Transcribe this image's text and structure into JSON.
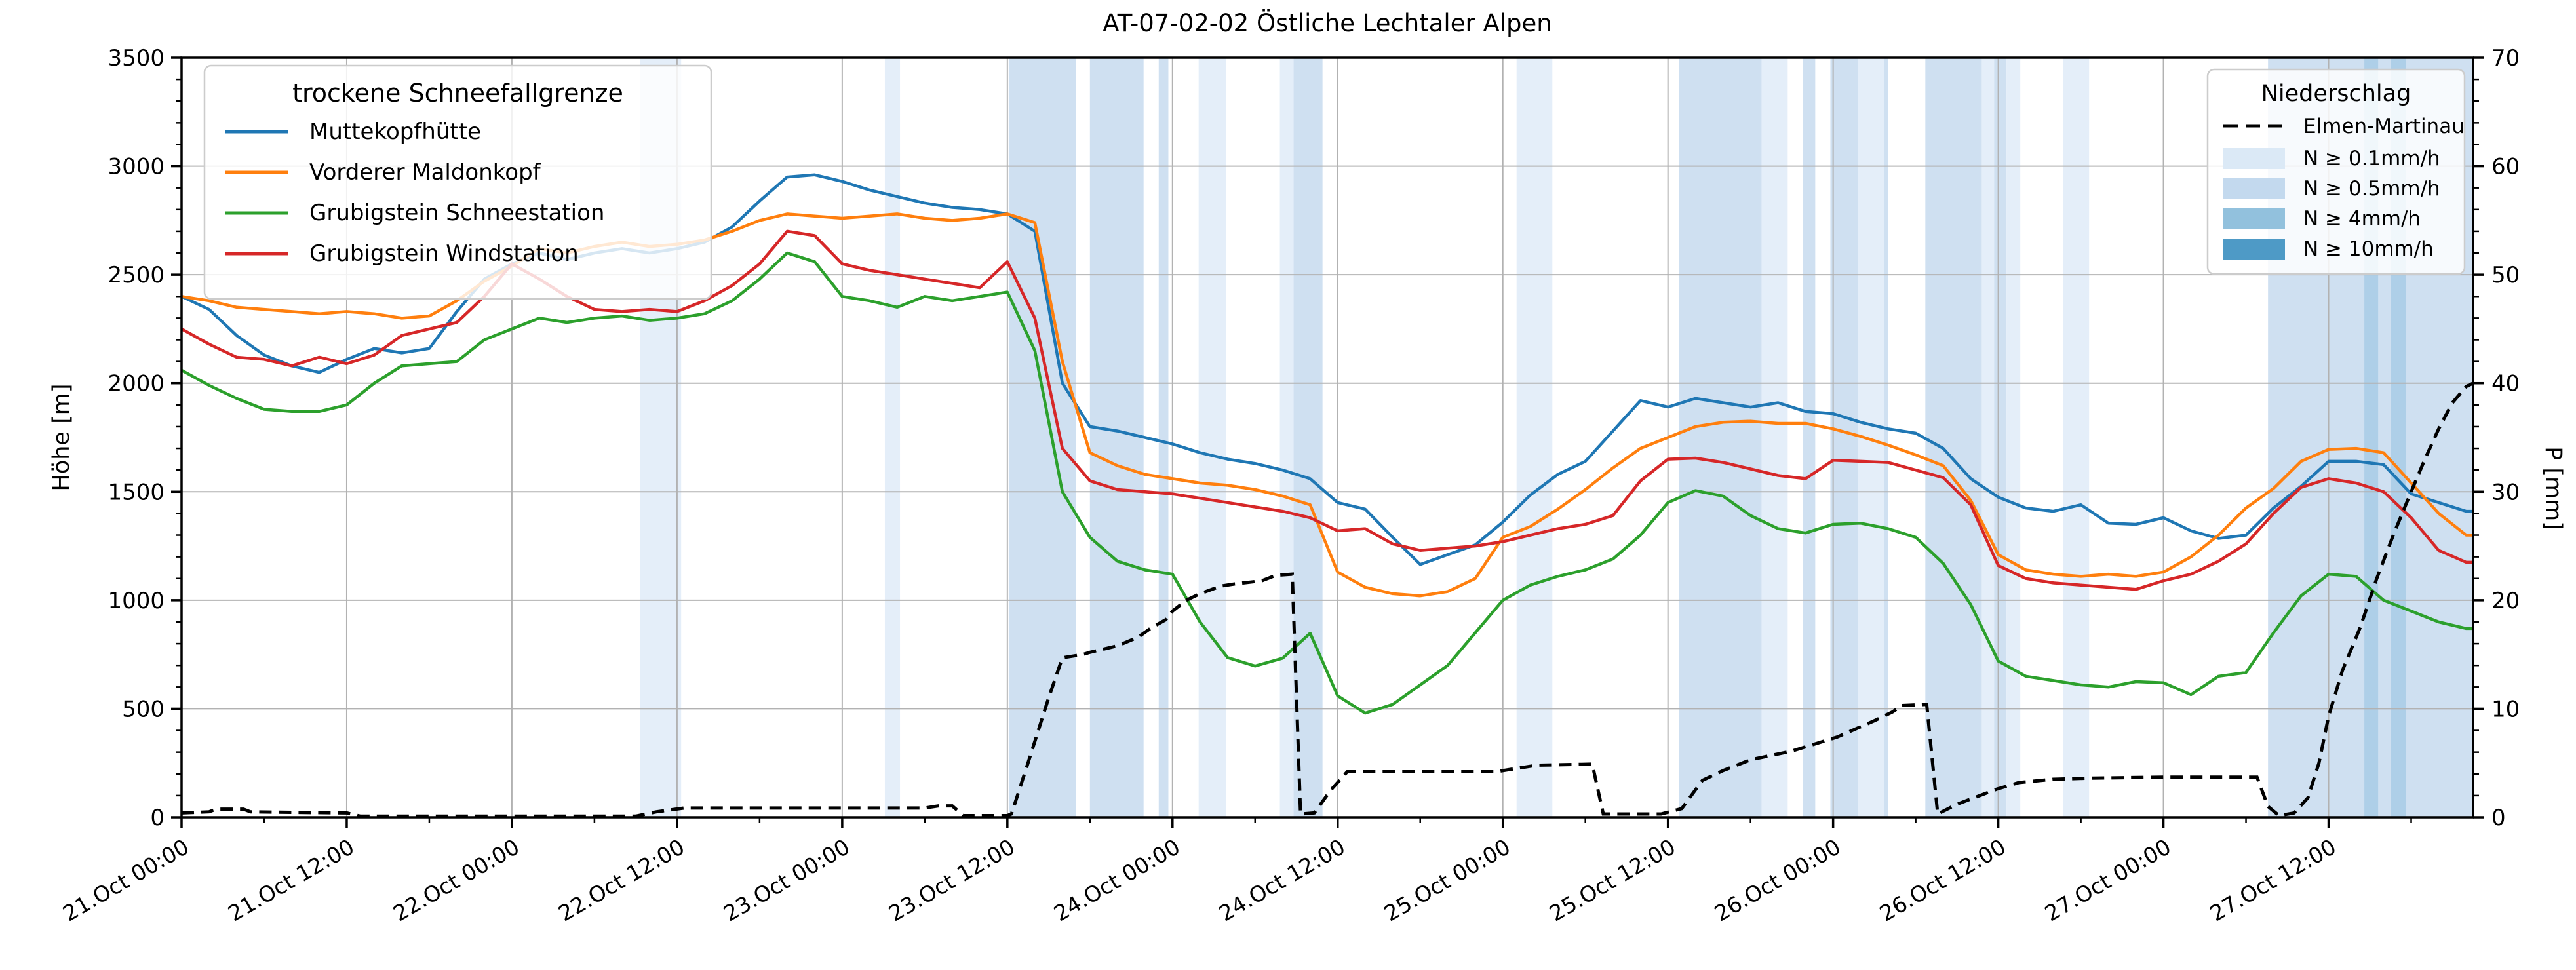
{
  "title": "AT-07-02-02 Östliche Lechtaler Alpen",
  "legend_snowline": {
    "title": "trockene Schneefallgrenze",
    "items": [
      {
        "label": "Muttekopfhütte",
        "color": "#1f77b4"
      },
      {
        "label": "Vorderer Maldonkopf",
        "color": "#ff7f0e"
      },
      {
        "label": "Grubigstein Schneestation",
        "color": "#2ca02c"
      },
      {
        "label": "Grubigstein Windstation",
        "color": "#d62728"
      }
    ]
  },
  "legend_precip": {
    "title": "Niederschlag",
    "line_item": {
      "label": "Elmen-Martinau",
      "color": "#000000"
    },
    "levels": [
      {
        "label": "N ≥ 0.1mm/h",
        "color": "#dbe9f6",
        "plot_color": "#e4eef9"
      },
      {
        "label": "N ≥ 0.5mm/h",
        "color": "#c3d9ee",
        "plot_color": "#cfe0f1"
      },
      {
        "label": "N ≥ 4mm/h",
        "color": "#92c1dd",
        "plot_color": "#aecfe8"
      },
      {
        "label": "N ≥ 10mm/h",
        "color": "#4e9ac6",
        "plot_color": "#4e9ac6"
      }
    ]
  },
  "axes": {
    "ylabel_left": "Höhe [m]",
    "ylabel_right": "P [mm]",
    "x_tick_labels": [
      "21.Oct 00:00",
      "21.Oct 12:00",
      "22.Oct 00:00",
      "22.Oct 12:00",
      "23.Oct 00:00",
      "23.Oct 12:00",
      "24.Oct 00:00",
      "24.Oct 12:00",
      "25.Oct 00:00",
      "25.Oct 12:00",
      "26.Oct 00:00",
      "26.Oct 12:00",
      "27.Oct 00:00",
      "27.Oct 12:00"
    ],
    "y_left_tick_labels": [
      "0",
      "500",
      "1000",
      "1500",
      "2000",
      "2500",
      "3000",
      "3500"
    ],
    "y_right_tick_labels": [
      "0",
      "10",
      "20",
      "30",
      "40",
      "50",
      "60",
      "70"
    ]
  },
  "chart_data": {
    "type": "line",
    "title": "AT-07-02-02 Östliche Lechtaler Alpen",
    "xlabel": "",
    "ylabel_left": "Höhe [m]",
    "ylabel_right": "P [mm]",
    "x_unit": "hours since 21.Oct 00:00",
    "x_total_hours": 166.5,
    "x_major_tick_every_h": 12,
    "x_minor_tick_every_h": 6,
    "ylim_left": [
      0,
      3500
    ],
    "ylim_right": [
      0,
      70
    ],
    "grid": true,
    "sample_step_hours": 2,
    "series": [
      {
        "name": "Muttekopfhütte",
        "color": "#1f77b4",
        "axis": "left",
        "values": [
          2400,
          2340,
          2220,
          2130,
          2080,
          2050,
          2110,
          2160,
          2140,
          2160,
          2330,
          2480,
          2550,
          2600,
          2570,
          2600,
          2620,
          2600,
          2620,
          2650,
          2720,
          2840,
          2950,
          2960,
          2930,
          2890,
          2860,
          2830,
          2810,
          2800,
          2780,
          2700,
          2000,
          1800,
          1780,
          1750,
          1720,
          1680,
          1650,
          1630,
          1600,
          1560,
          1450,
          1420,
          1290,
          1165,
          1210,
          1255,
          1360,
          1485,
          1580,
          1640,
          1780,
          1920,
          1890,
          1930,
          1910,
          1890,
          1910,
          1870,
          1860,
          1820,
          1790,
          1770,
          1700,
          1560,
          1475,
          1425,
          1410,
          1440,
          1355,
          1350,
          1380,
          1320,
          1285,
          1300,
          1425,
          1525,
          1640,
          1640,
          1625,
          1490,
          1450,
          1410
        ]
      },
      {
        "name": "Vorderer Maldonkopf",
        "color": "#ff7f0e",
        "axis": "left",
        "values": [
          2400,
          2380,
          2350,
          2340,
          2330,
          2320,
          2330,
          2320,
          2300,
          2310,
          2380,
          2470,
          2540,
          2620,
          2600,
          2630,
          2650,
          2630,
          2640,
          2660,
          2700,
          2750,
          2780,
          2770,
          2760,
          2770,
          2780,
          2760,
          2750,
          2760,
          2780,
          2740,
          2100,
          1680,
          1620,
          1580,
          1560,
          1540,
          1530,
          1510,
          1480,
          1440,
          1130,
          1060,
          1030,
          1020,
          1040,
          1100,
          1290,
          1340,
          1420,
          1510,
          1610,
          1700,
          1750,
          1800,
          1820,
          1825,
          1815,
          1815,
          1790,
          1755,
          1715,
          1670,
          1620,
          1460,
          1210,
          1140,
          1120,
          1110,
          1120,
          1110,
          1130,
          1200,
          1300,
          1425,
          1515,
          1640,
          1695,
          1700,
          1680,
          1540,
          1400,
          1300
        ]
      },
      {
        "name": "Grubigstein Schneestation",
        "color": "#2ca02c",
        "axis": "left",
        "values": [
          2060,
          1990,
          1930,
          1880,
          1870,
          1870,
          1900,
          2000,
          2080,
          2090,
          2100,
          2200,
          2250,
          2300,
          2280,
          2300,
          2310,
          2290,
          2300,
          2320,
          2380,
          2480,
          2600,
          2560,
          2400,
          2380,
          2350,
          2400,
          2380,
          2400,
          2420,
          2150,
          1500,
          1290,
          1180,
          1140,
          1120,
          900,
          736,
          697,
          733,
          848,
          560,
          480,
          520,
          610,
          700,
          850,
          1000,
          1070,
          1110,
          1140,
          1190,
          1300,
          1450,
          1505,
          1480,
          1390,
          1330,
          1310,
          1350,
          1355,
          1330,
          1290,
          1170,
          980,
          720,
          650,
          630,
          610,
          600,
          625,
          620,
          565,
          650,
          667,
          850,
          1020,
          1120,
          1110,
          1000,
          950,
          900,
          870
        ]
      },
      {
        "name": "Grubigstein Windstation",
        "color": "#d62728",
        "axis": "left",
        "values": [
          2250,
          2180,
          2120,
          2110,
          2080,
          2120,
          2090,
          2130,
          2220,
          2250,
          2280,
          2400,
          2550,
          2480,
          2400,
          2340,
          2330,
          2340,
          2330,
          2380,
          2450,
          2550,
          2700,
          2680,
          2550,
          2520,
          2500,
          2480,
          2460,
          2440,
          2560,
          2300,
          1700,
          1550,
          1510,
          1500,
          1490,
          1470,
          1450,
          1430,
          1410,
          1380,
          1320,
          1330,
          1260,
          1230,
          1240,
          1250,
          1270,
          1300,
          1330,
          1350,
          1390,
          1550,
          1650,
          1655,
          1635,
          1605,
          1575,
          1560,
          1645,
          1640,
          1635,
          1600,
          1565,
          1440,
          1160,
          1100,
          1080,
          1070,
          1060,
          1050,
          1090,
          1120,
          1180,
          1260,
          1400,
          1520,
          1560,
          1540,
          1500,
          1380,
          1230,
          1175
        ]
      }
    ],
    "precip_line": {
      "name": "Elmen-Martinau",
      "color": "#000000",
      "style": "dashed",
      "axis": "right",
      "points": [
        [
          0,
          0.4
        ],
        [
          2,
          0.5
        ],
        [
          2.5,
          0.75
        ],
        [
          4.5,
          0.75
        ],
        [
          5,
          0.5
        ],
        [
          8,
          0.45
        ],
        [
          12,
          0.4
        ],
        [
          13,
          0.1
        ],
        [
          33,
          0.1
        ],
        [
          34.5,
          0.5
        ],
        [
          36.5,
          0.85
        ],
        [
          54,
          0.85
        ],
        [
          55,
          1.05
        ],
        [
          56,
          1.05
        ],
        [
          56.8,
          0.15
        ],
        [
          60,
          0.15
        ],
        [
          60.3,
          0.3
        ],
        [
          61.5,
          5
        ],
        [
          63,
          11
        ],
        [
          64,
          14.7
        ],
        [
          65.5,
          15
        ],
        [
          66,
          15.2
        ],
        [
          68,
          15.8
        ],
        [
          69.5,
          16.6
        ],
        [
          70.5,
          17.5
        ],
        [
          71.5,
          18.2
        ],
        [
          72,
          19
        ],
        [
          73,
          20
        ],
        [
          74,
          20.6
        ],
        [
          75.5,
          21.3
        ],
        [
          76.5,
          21.5
        ],
        [
          78.5,
          21.8
        ],
        [
          79.5,
          22.3
        ],
        [
          80.7,
          22.4
        ],
        [
          81.3,
          0.3
        ],
        [
          82.3,
          0.4
        ],
        [
          83.5,
          2.5
        ],
        [
          84.7,
          4.2
        ],
        [
          95.5,
          4.2
        ],
        [
          96.5,
          4.4
        ],
        [
          98.5,
          4.8
        ],
        [
          102.5,
          4.9
        ],
        [
          103.3,
          0.3
        ],
        [
          107.5,
          0.3
        ],
        [
          109,
          0.8
        ],
        [
          110.5,
          3.4
        ],
        [
          112,
          4.3
        ],
        [
          114,
          5.3
        ],
        [
          117,
          6.1
        ],
        [
          120.3,
          7.4
        ],
        [
          123,
          8.9
        ],
        [
          124.3,
          9.7
        ],
        [
          125,
          10.3
        ],
        [
          126.8,
          10.4
        ],
        [
          127.6,
          0.3
        ],
        [
          129,
          1.2
        ],
        [
          131.9,
          2.6
        ],
        [
          133.5,
          3.2
        ],
        [
          136,
          3.5
        ],
        [
          138.5,
          3.6
        ],
        [
          144,
          3.7
        ],
        [
          150.8,
          3.7
        ],
        [
          151.6,
          1
        ],
        [
          152.4,
          0.15
        ],
        [
          153.5,
          0.4
        ],
        [
          154.5,
          1.8
        ],
        [
          155.3,
          5
        ],
        [
          156,
          9.3
        ],
        [
          157,
          13.5
        ],
        [
          158.3,
          17.5
        ],
        [
          159.5,
          22
        ],
        [
          160.7,
          26
        ],
        [
          162,
          30
        ],
        [
          163,
          33
        ],
        [
          164,
          35.8
        ],
        [
          165,
          38.2
        ],
        [
          166,
          39.7
        ],
        [
          166.5,
          40
        ]
      ]
    },
    "precip_bands": [
      [
        33.3,
        36.3,
        1
      ],
      [
        51.1,
        52.2,
        1
      ],
      [
        60.1,
        65.0,
        2
      ],
      [
        66.0,
        69.9,
        2
      ],
      [
        71.0,
        71.7,
        2
      ],
      [
        73.9,
        75.9,
        1
      ],
      [
        79.8,
        80.8,
        1
      ],
      [
        80.8,
        82.9,
        2
      ],
      [
        97.0,
        99.6,
        1
      ],
      [
        108.8,
        114.8,
        2
      ],
      [
        114.8,
        116.7,
        1
      ],
      [
        117.8,
        118.7,
        2
      ],
      [
        119.8,
        121.8,
        2
      ],
      [
        121.8,
        123.7,
        1
      ],
      [
        123.7,
        124.0,
        2
      ],
      [
        126.7,
        130.8,
        2
      ],
      [
        130.8,
        131.7,
        1
      ],
      [
        131.7,
        132.6,
        2
      ],
      [
        132.6,
        133.6,
        1
      ],
      [
        136.7,
        138.6,
        1
      ],
      [
        151.6,
        166.5,
        2
      ],
      [
        158.6,
        159.6,
        3
      ],
      [
        160.5,
        161.6,
        3
      ]
    ],
    "band_level_thresholds_mm_per_h": [
      0.1,
      0.5,
      4,
      10
    ]
  },
  "layout_note_visible_only": "all values above are read from the rendered pixels"
}
